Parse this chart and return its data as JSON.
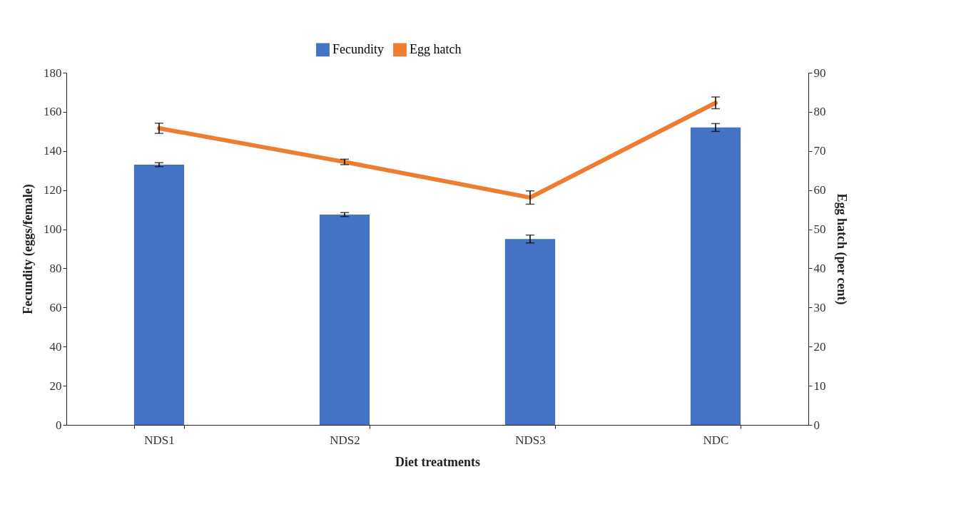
{
  "chart_data": {
    "type": "bar",
    "xlabel": "Diet treatments",
    "ylabel": "Fecundity  (eggs/female)",
    "y2label": "Egg hatch (per cent)",
    "categories": [
      "NDS1",
      "NDS2",
      "NDS3",
      "NDC"
    ],
    "series": [
      {
        "name": "Fecundity",
        "color": "#4472c4",
        "values": [
          133,
          107.5,
          95,
          152
        ],
        "errors": [
          1,
          1,
          2,
          2
        ]
      },
      {
        "name": "Egg hatch",
        "type": "line",
        "axis": "y2",
        "color": "#ed7d31",
        "values": [
          75.8,
          67.2,
          58.1,
          82.3
        ],
        "errors": [
          1.3,
          0.7,
          1.7,
          1.5
        ]
      }
    ],
    "ylim": [
      0,
      180
    ],
    "yticks": [
      0,
      20,
      40,
      60,
      80,
      100,
      120,
      140,
      160,
      180
    ],
    "y2lim": [
      0,
      90
    ],
    "y2ticks": [
      0,
      10,
      20,
      30,
      40,
      50,
      60,
      70,
      80,
      90
    ],
    "legend": "top",
    "grid": false
  }
}
